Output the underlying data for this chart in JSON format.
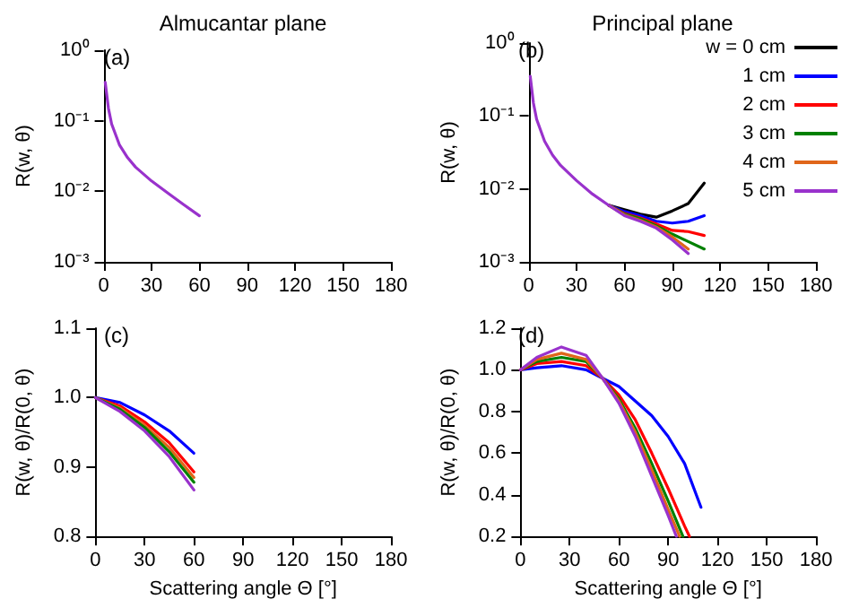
{
  "chart_data": [
    {
      "type": "line",
      "title": "Almucantar plane",
      "ylabel": "R(w, θ)",
      "log": "y",
      "marker": "none",
      "annotations": [
        "(a)"
      ],
      "xlim": [
        0,
        180
      ],
      "xticks": [
        0,
        30,
        60,
        90,
        120,
        150,
        180
      ],
      "ylim": [
        0.001,
        1
      ],
      "yticks": [
        {
          "value": 0.001,
          "label": "10⁻³"
        },
        {
          "value": 0.01,
          "label": "10⁻²"
        },
        {
          "value": 0.1,
          "label": "10⁻¹"
        },
        {
          "value": 1,
          "label": "10⁰"
        }
      ],
      "x": [
        1,
        3,
        5,
        10,
        15,
        20,
        30,
        40,
        50,
        60
      ],
      "series": [
        {
          "color": "#9932cc",
          "values": [
            0.35,
            0.15,
            0.09,
            0.045,
            0.03,
            0.022,
            0.014,
            0.0095,
            0.0065,
            0.0045
          ]
        }
      ]
    },
    {
      "type": "line",
      "title": "Principal plane",
      "ylabel": "R(w, θ)",
      "log": "y",
      "marker": "none",
      "legend": "top right",
      "annotations": [
        "(b)"
      ],
      "xlim": [
        0,
        180
      ],
      "xticks": [
        0,
        30,
        60,
        90,
        120,
        150,
        180
      ],
      "ylim": [
        0.001,
        1
      ],
      "yticks": [
        {
          "value": 0.001,
          "label": "10⁻³"
        },
        {
          "value": 0.01,
          "label": "10⁻²"
        },
        {
          "value": 0.1,
          "label": "10⁻¹"
        },
        {
          "value": 1,
          "label": "10⁰"
        }
      ],
      "x": [
        1,
        3,
        5,
        10,
        15,
        20,
        30,
        40,
        50,
        60,
        70,
        80,
        90,
        100,
        110
      ],
      "series": [
        {
          "name": "w = 0 cm",
          "color": "#000000",
          "values": [
            null,
            null,
            null,
            null,
            null,
            null,
            null,
            null,
            0.006,
            0.0052,
            0.0045,
            0.0041,
            0.005,
            0.0063,
            0.012
          ]
        },
        {
          "name": "1 cm",
          "color": "#0000ff",
          "values": [
            null,
            null,
            null,
            null,
            null,
            null,
            null,
            null,
            0.006,
            0.0049,
            0.0043,
            0.0036,
            0.0034,
            0.0036,
            0.0043
          ]
        },
        {
          "name": "2 cm",
          "color": "#ff0000",
          "values": [
            null,
            null,
            null,
            null,
            null,
            null,
            null,
            null,
            0.006,
            0.0046,
            0.004,
            0.0033,
            0.0027,
            0.0026,
            0.0023
          ]
        },
        {
          "name": "3 cm",
          "color": "#008000",
          "values": [
            null,
            null,
            null,
            null,
            null,
            null,
            null,
            null,
            0.006,
            0.0045,
            0.0039,
            0.0031,
            0.0024,
            0.0019,
            0.0015
          ]
        },
        {
          "name": "4 cm",
          "color": "#e0661a",
          "values": [
            null,
            null,
            null,
            null,
            null,
            null,
            null,
            null,
            0.006,
            0.0044,
            0.0037,
            0.003,
            0.0022,
            0.0015,
            null
          ]
        },
        {
          "name": "5 cm",
          "color": "#9932cc",
          "values": [
            0.35,
            0.15,
            0.09,
            0.045,
            0.029,
            0.021,
            0.013,
            0.0085,
            0.006,
            0.0043,
            0.0036,
            0.0029,
            0.002,
            0.0013,
            null
          ]
        }
      ]
    },
    {
      "type": "line",
      "xlabel": "Scattering angle Θ [°]",
      "ylabel": "R(w, θ)/R(0, θ)",
      "marker": "none",
      "annotations": [
        "(c)"
      ],
      "xlim": [
        0,
        180
      ],
      "xticks": [
        0,
        30,
        60,
        90,
        120,
        150,
        180
      ],
      "ylim": [
        0.8,
        1.1
      ],
      "yticks": [
        0.8,
        0.9,
        {
          "value": 1,
          "label": "1.0"
        },
        1.1
      ],
      "x": [
        0,
        15,
        30,
        45,
        60
      ],
      "series": [
        {
          "color": "#0000ff",
          "values": [
            1,
            0.993,
            0.975,
            0.952,
            0.92
          ]
        },
        {
          "color": "#ff0000",
          "values": [
            1,
            0.988,
            0.965,
            0.935,
            0.893
          ]
        },
        {
          "color": "#e0661a",
          "values": [
            1,
            0.985,
            0.96,
            0.928,
            0.885
          ]
        },
        {
          "color": "#008000",
          "values": [
            1,
            0.983,
            0.957,
            0.922,
            0.878
          ]
        },
        {
          "color": "#9932cc",
          "values": [
            1,
            0.98,
            0.952,
            0.915,
            0.867
          ]
        }
      ]
    },
    {
      "type": "line",
      "xlabel": "Scattering angle Θ [°]",
      "ylabel": "R(w, θ)/R(0, θ)",
      "marker": "none",
      "annotations": [
        "(d)"
      ],
      "xlim": [
        0,
        180
      ],
      "xticks": [
        0,
        30,
        60,
        90,
        120,
        150,
        180
      ],
      "ylim": [
        0.2,
        1.2
      ],
      "yticks": [
        0.2,
        0.4,
        0.6,
        0.8,
        {
          "value": 1,
          "label": "1.0"
        },
        1.2
      ],
      "series": [
        {
          "color": "#0000ff",
          "x": [
            0,
            10,
            25,
            40,
            50,
            60,
            70,
            80,
            90,
            100,
            110
          ],
          "values": [
            1,
            1.01,
            1.02,
            1,
            0.96,
            0.92,
            0.85,
            0.78,
            0.68,
            0.55,
            0.34
          ]
        },
        {
          "color": "#ff0000",
          "x": [
            0,
            10,
            25,
            40,
            50,
            60,
            70,
            80,
            90,
            100,
            103
          ],
          "values": [
            1,
            1.03,
            1.04,
            1.02,
            0.96,
            0.88,
            0.76,
            0.6,
            0.43,
            0.25,
            0.2
          ]
        },
        {
          "color": "#008000",
          "x": [
            0,
            10,
            25,
            40,
            50,
            60,
            70,
            80,
            90,
            99
          ],
          "values": [
            1,
            1.04,
            1.06,
            1.04,
            0.96,
            0.86,
            0.72,
            0.55,
            0.37,
            0.2
          ]
        },
        {
          "color": "#e0661a",
          "x": [
            0,
            10,
            25,
            40,
            50,
            60,
            70,
            80,
            90,
            97
          ],
          "values": [
            1,
            1.05,
            1.08,
            1.05,
            0.96,
            0.85,
            0.7,
            0.52,
            0.33,
            0.2
          ]
        },
        {
          "color": "#9932cc",
          "x": [
            0,
            10,
            25,
            40,
            50,
            60,
            70,
            80,
            90,
            95
          ],
          "values": [
            1,
            1.06,
            1.11,
            1.07,
            0.96,
            0.84,
            0.68,
            0.49,
            0.3,
            0.2
          ]
        }
      ]
    }
  ]
}
